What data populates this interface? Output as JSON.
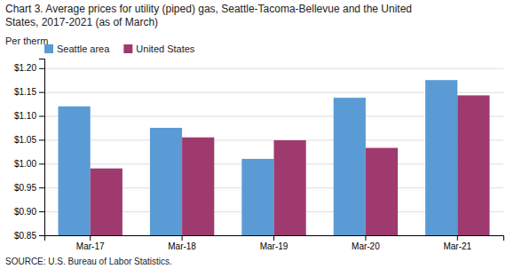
{
  "chart_data": {
    "type": "bar",
    "title": [
      "Chart 3. Average prices for utility (piped) gas, Seattle-Tacoma-Bellevue and the United",
      "States, 2017-2021  (as of March)"
    ],
    "ylabel": "Per therm",
    "source": "SOURCE: U.S. Bureau of Labor Statistics.",
    "categories": [
      "Mar-17",
      "Mar-18",
      "Mar-19",
      "Mar-20",
      "Mar-21"
    ],
    "series": [
      {
        "name": "Seattle area",
        "color": "#5B9BD5",
        "values": [
          1.12,
          1.075,
          1.01,
          1.138,
          1.175
        ]
      },
      {
        "name": "United States",
        "color": "#9E3A6E",
        "values": [
          0.99,
          1.055,
          1.049,
          1.033,
          1.143
        ]
      }
    ],
    "ylim": [
      0.85,
      1.22
    ],
    "yticks": [
      {
        "value": 0.85,
        "label": "$0.85"
      },
      {
        "value": 0.9,
        "label": "$0.90"
      },
      {
        "value": 0.95,
        "label": "$0.95"
      },
      {
        "value": 1.0,
        "label": "$1.00"
      },
      {
        "value": 1.05,
        "label": "$1.05"
      },
      {
        "value": 1.1,
        "label": "$1.10"
      },
      {
        "value": 1.15,
        "label": "$1.15"
      },
      {
        "value": 1.2,
        "label": "$1.20"
      }
    ],
    "grid": true,
    "legend": "top-left"
  }
}
